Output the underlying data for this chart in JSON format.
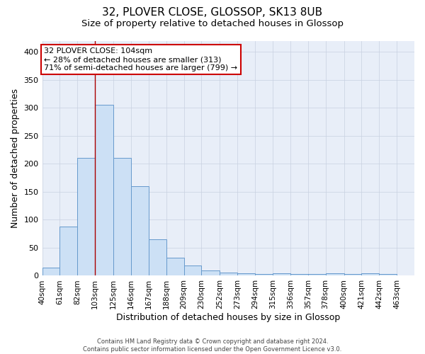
{
  "title": "32, PLOVER CLOSE, GLOSSOP, SK13 8UB",
  "subtitle": "Size of property relative to detached houses in Glossop",
  "xlabel": "Distribution of detached houses by size in Glossop",
  "ylabel": "Number of detached properties",
  "footer_line1": "Contains HM Land Registry data © Crown copyright and database right 2024.",
  "footer_line2": "Contains public sector information licensed under the Open Government Licence v3.0.",
  "bin_labels": [
    "40sqm",
    "61sqm",
    "82sqm",
    "103sqm",
    "125sqm",
    "146sqm",
    "167sqm",
    "188sqm",
    "209sqm",
    "230sqm",
    "252sqm",
    "273sqm",
    "294sqm",
    "315sqm",
    "336sqm",
    "357sqm",
    "378sqm",
    "400sqm",
    "421sqm",
    "442sqm",
    "463sqm"
  ],
  "bin_edges": [
    40,
    61,
    82,
    103,
    125,
    146,
    167,
    188,
    209,
    230,
    252,
    273,
    294,
    315,
    336,
    357,
    378,
    400,
    421,
    442,
    463
  ],
  "bar_heights": [
    15,
    88,
    210,
    305,
    210,
    160,
    65,
    32,
    18,
    10,
    6,
    4,
    3,
    4,
    3,
    3,
    5,
    3,
    5,
    3
  ],
  "bar_facecolor": "#cce0f5",
  "bar_edgecolor": "#6699cc",
  "grid_color": "#c8d0e0",
  "background_color": "#e8eef8",
  "vline_x": 103,
  "vline_color": "#aa0000",
  "annotation_line1": "32 PLOVER CLOSE: 104sqm",
  "annotation_line2": "← 28% of detached houses are smaller (313)",
  "annotation_line3": "71% of semi-detached houses are larger (799) →",
  "ylim": [
    0,
    420
  ],
  "yticks": [
    0,
    50,
    100,
    150,
    200,
    250,
    300,
    350,
    400
  ],
  "title_fontsize": 11,
  "subtitle_fontsize": 9.5,
  "tick_fontsize": 7.5,
  "ylabel_fontsize": 9,
  "xlabel_fontsize": 9,
  "annotation_fontsize": 8,
  "footer_fontsize": 6
}
